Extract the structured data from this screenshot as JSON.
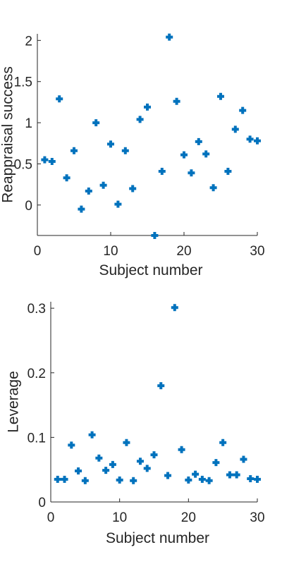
{
  "chart_data": [
    {
      "type": "scatter",
      "xlabel": "Subject number",
      "ylabel": "Reappraisal success",
      "xlim": [
        0,
        30
      ],
      "ylim": [
        -0.37,
        2.08
      ],
      "xticks": [
        0,
        10,
        20,
        30
      ],
      "yticks": [
        0,
        0.5,
        1,
        1.5,
        2
      ],
      "xtick_labels": [
        "0",
        "10",
        "20",
        "30"
      ],
      "ytick_labels": [
        "0",
        "0.5",
        "1",
        "1.5",
        "2"
      ],
      "marker_color": "#0072BD",
      "marker": "plus",
      "grid": false,
      "x": [
        1,
        2,
        3,
        4,
        5,
        6,
        7,
        8,
        9,
        10,
        11,
        12,
        13,
        14,
        15,
        16,
        17,
        18,
        19,
        20,
        21,
        22,
        23,
        24,
        25,
        26,
        27,
        28,
        29,
        30
      ],
      "y": [
        0.55,
        0.53,
        1.29,
        0.33,
        0.66,
        -0.05,
        0.17,
        1.0,
        0.24,
        0.74,
        0.01,
        0.66,
        0.2,
        1.04,
        1.19,
        -0.37,
        0.41,
        2.04,
        1.26,
        0.61,
        0.39,
        0.77,
        0.62,
        0.21,
        1.32,
        0.41,
        0.92,
        1.15,
        0.8,
        0.78
      ]
    },
    {
      "type": "scatter",
      "xlabel": "Subject number",
      "ylabel": "Leverage",
      "xlim": [
        0,
        30
      ],
      "ylim": [
        0,
        0.31
      ],
      "xticks": [
        0,
        10,
        20,
        30
      ],
      "yticks": [
        0,
        0.1,
        0.2,
        0.3
      ],
      "xtick_labels": [
        "0",
        "10",
        "20",
        "30"
      ],
      "ytick_labels": [
        "0",
        "0.1",
        "0.2",
        "0.3"
      ],
      "marker_color": "#0072BD",
      "marker": "plus",
      "grid": false,
      "x": [
        1,
        2,
        3,
        4,
        5,
        6,
        7,
        8,
        9,
        10,
        11,
        12,
        13,
        14,
        15,
        16,
        17,
        18,
        19,
        20,
        21,
        22,
        23,
        24,
        25,
        26,
        27,
        28,
        29,
        30
      ],
      "y": [
        0.035,
        0.035,
        0.088,
        0.048,
        0.033,
        0.104,
        0.068,
        0.049,
        0.058,
        0.034,
        0.092,
        0.033,
        0.063,
        0.052,
        0.073,
        0.18,
        0.041,
        0.301,
        0.081,
        0.034,
        0.043,
        0.035,
        0.033,
        0.061,
        0.092,
        0.042,
        0.042,
        0.066,
        0.036,
        0.035
      ]
    }
  ]
}
